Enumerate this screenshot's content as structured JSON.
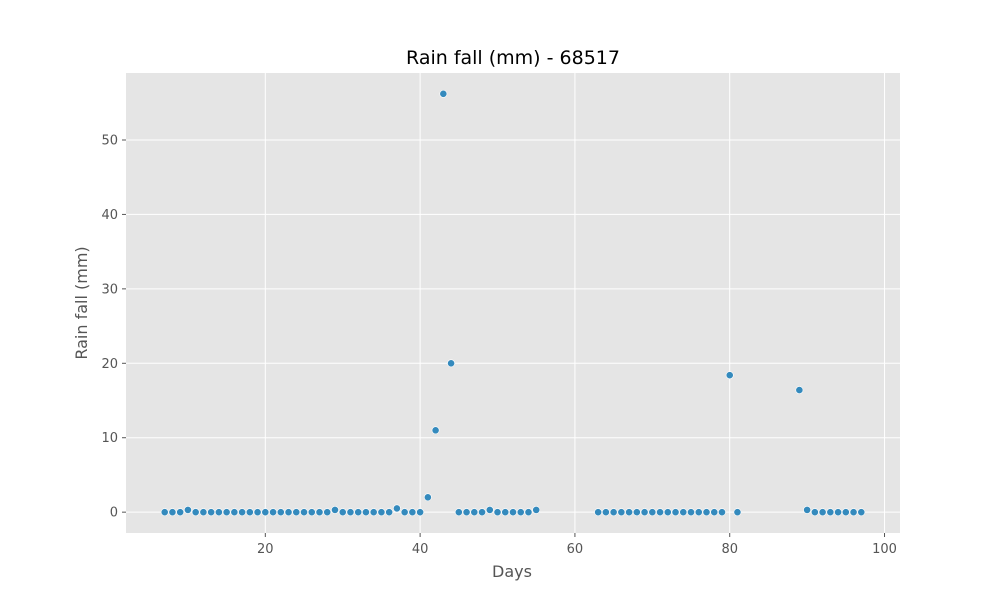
{
  "chart_data": {
    "type": "scatter",
    "title": "Rain fall (mm) - 68517",
    "xlabel": "Days",
    "ylabel": "Rain fall (mm)",
    "xlim": [
      2,
      102
    ],
    "ylim": [
      -2.8,
      59
    ],
    "x_ticks": [
      20,
      40,
      60,
      80,
      100
    ],
    "y_ticks": [
      0,
      10,
      20,
      30,
      40,
      50
    ],
    "grid": true,
    "colors": {
      "background": "#e5e5e5",
      "grid": "#ffffff",
      "marker": "#348abd",
      "tick": "#555555"
    },
    "points": [
      [
        7,
        0
      ],
      [
        8,
        0
      ],
      [
        9,
        0
      ],
      [
        10,
        0.3
      ],
      [
        11,
        0
      ],
      [
        12,
        0
      ],
      [
        13,
        0
      ],
      [
        14,
        0
      ],
      [
        15,
        0
      ],
      [
        16,
        0
      ],
      [
        17,
        0
      ],
      [
        18,
        0
      ],
      [
        19,
        0
      ],
      [
        20,
        0
      ],
      [
        21,
        0
      ],
      [
        22,
        0
      ],
      [
        23,
        0
      ],
      [
        24,
        0
      ],
      [
        25,
        0
      ],
      [
        26,
        0
      ],
      [
        27,
        0
      ],
      [
        28,
        0
      ],
      [
        29,
        0.3
      ],
      [
        30,
        0
      ],
      [
        31,
        0
      ],
      [
        32,
        0
      ],
      [
        33,
        0
      ],
      [
        34,
        0
      ],
      [
        35,
        0
      ],
      [
        36,
        0
      ],
      [
        37,
        0.5
      ],
      [
        38,
        0
      ],
      [
        39,
        0
      ],
      [
        40,
        0
      ],
      [
        41,
        2
      ],
      [
        42,
        11
      ],
      [
        43,
        56.2
      ],
      [
        44,
        20
      ],
      [
        45,
        0
      ],
      [
        46,
        0
      ],
      [
        47,
        0
      ],
      [
        48,
        0
      ],
      [
        49,
        0.3
      ],
      [
        50,
        0
      ],
      [
        51,
        0
      ],
      [
        52,
        0
      ],
      [
        53,
        0
      ],
      [
        54,
        0
      ],
      [
        55,
        0.3
      ],
      [
        63,
        0
      ],
      [
        64,
        0
      ],
      [
        65,
        0
      ],
      [
        66,
        0
      ],
      [
        67,
        0
      ],
      [
        68,
        0
      ],
      [
        69,
        0
      ],
      [
        70,
        0
      ],
      [
        71,
        0
      ],
      [
        72,
        0
      ],
      [
        73,
        0
      ],
      [
        74,
        0
      ],
      [
        75,
        0
      ],
      [
        76,
        0
      ],
      [
        77,
        0
      ],
      [
        78,
        0
      ],
      [
        79,
        0
      ],
      [
        80,
        18.4
      ],
      [
        81,
        0
      ],
      [
        89,
        16.4
      ],
      [
        90,
        0.3
      ],
      [
        91,
        0
      ],
      [
        92,
        0
      ],
      [
        93,
        0
      ],
      [
        94,
        0
      ],
      [
        95,
        0
      ],
      [
        96,
        0
      ],
      [
        97,
        0
      ]
    ]
  }
}
